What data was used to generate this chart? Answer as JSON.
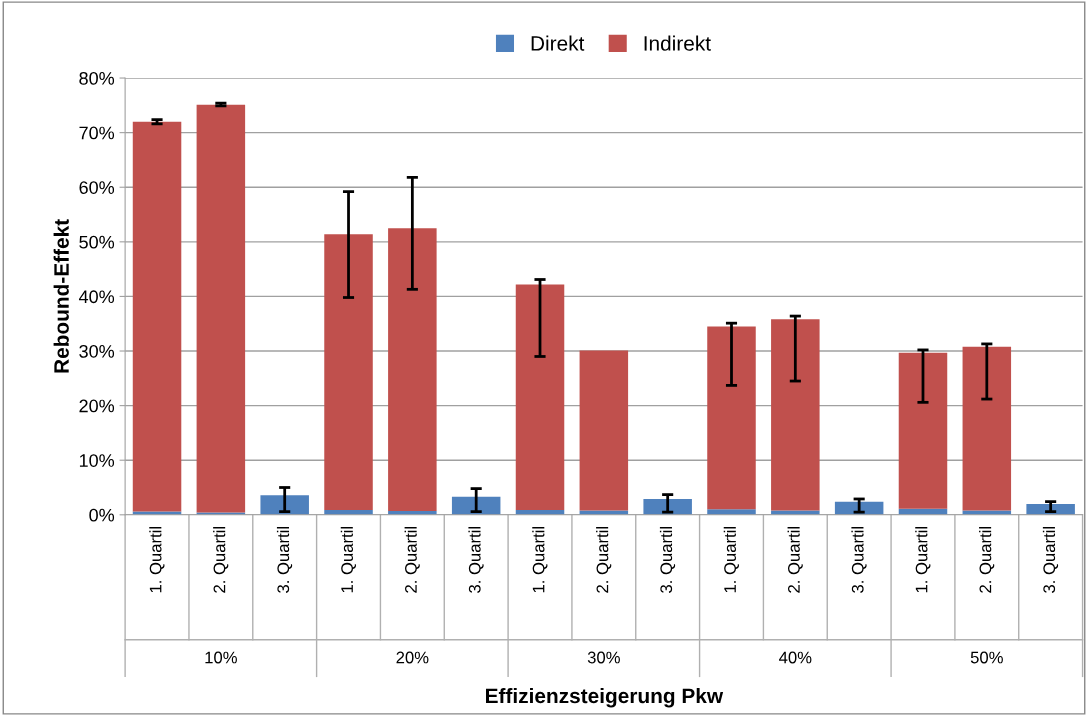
{
  "chart_data": {
    "type": "bar",
    "stacked": true,
    "xlabel": "Effizienzsteigerung Pkw",
    "ylabel": "Rebound-Effekt",
    "categories": [
      "1. Quartil",
      "2. Quartil",
      "3. Quartil",
      "1. Quartil",
      "2. Quartil",
      "3. Quartil",
      "1. Quartil",
      "2. Quartil",
      "3. Quartil",
      "1. Quartil",
      "2. Quartil",
      "3. Quartil",
      "1. Quartil",
      "2. Quartil",
      "3. Quartil"
    ],
    "series": [
      {
        "name": "Direkt",
        "color": "#4f81bd",
        "values": [
          0.6,
          0.4,
          3.6,
          0.9,
          0.7,
          3.3,
          0.9,
          0.8,
          2.9,
          1.0,
          0.8,
          2.4,
          1.1,
          0.8,
          2.0
        ],
        "errors": [
          null,
          null,
          [
            0.6,
            5.0
          ],
          null,
          null,
          [
            0.6,
            4.8
          ],
          null,
          null,
          [
            0.5,
            3.7
          ],
          null,
          null,
          [
            0.5,
            2.9
          ],
          null,
          null,
          [
            0.6,
            2.4
          ]
        ]
      },
      {
        "name": "Indirekt",
        "color": "#c0504d",
        "values": [
          71.4,
          74.7,
          0,
          50.5,
          51.8,
          0,
          41.3,
          29.3,
          0,
          33.5,
          35.0,
          0,
          28.6,
          30.0,
          0
        ],
        "errors": [
          [
            71.6,
            72.4
          ],
          [
            74.9,
            75.4
          ],
          null,
          [
            39.8,
            59.2
          ],
          [
            41.3,
            61.8
          ],
          null,
          [
            29.0,
            43.1
          ],
          null,
          null,
          [
            23.7,
            35.1
          ],
          [
            24.5,
            36.4
          ],
          null,
          [
            20.6,
            30.2
          ],
          [
            21.2,
            31.3
          ],
          null
        ]
      }
    ],
    "annotations": [
      "10%",
      "20%",
      "30%",
      "40%",
      "50%"
    ],
    "ylim": [
      0,
      80
    ],
    "yticks": [
      {
        "value": 0,
        "label": "0%"
      },
      {
        "value": 10,
        "label": "10%"
      },
      {
        "value": 20,
        "label": "20%"
      },
      {
        "value": 30,
        "label": "30%"
      },
      {
        "value": 40,
        "label": "40%"
      },
      {
        "value": 50,
        "label": "50%"
      },
      {
        "value": 60,
        "label": "60%"
      },
      {
        "value": 70,
        "label": "70%"
      },
      {
        "value": 80,
        "label": "80%"
      }
    ],
    "grid": "y",
    "legend": "top"
  }
}
